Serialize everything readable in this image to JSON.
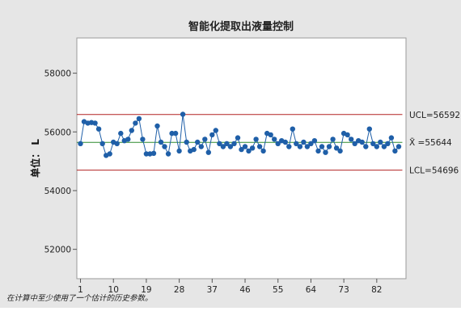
{
  "chart_data": {
    "type": "line",
    "title": "智能化提取出液量控制",
    "ylabel": "单位： L",
    "xlabel": "",
    "ylim": [
      51000,
      59200
    ],
    "xlim": [
      0,
      90
    ],
    "y_ticks": [
      52000,
      54000,
      56000,
      58000
    ],
    "x_ticks": [
      1,
      10,
      19,
      28,
      37,
      46,
      55,
      64,
      73,
      82
    ],
    "grid": false,
    "colors": {
      "outer_background": "#e6e6e6",
      "plot_background": "#ffffff",
      "series": "#1f5fa8",
      "control_limits": "#b22222",
      "center_line": "#2e8b2e"
    },
    "limits": {
      "ucl": {
        "label": "UCL=56592",
        "value": 56592
      },
      "center": {
        "label": "X̄ =55644",
        "value": 55644
      },
      "lcl": {
        "label": "LCL=54696",
        "value": 54696
      }
    },
    "series": [
      {
        "x": [
          1,
          2,
          3,
          4,
          5,
          6,
          7,
          8,
          9,
          10,
          11,
          12,
          13,
          14,
          15,
          16,
          17,
          18,
          19,
          20,
          21,
          22,
          23,
          24,
          25,
          26,
          27,
          28,
          29,
          30,
          31,
          32,
          33,
          34,
          35,
          36,
          37,
          38,
          39,
          40,
          41,
          42,
          43,
          44,
          45,
          46,
          47,
          48,
          49,
          50,
          51,
          52,
          53,
          54,
          55,
          56,
          57,
          58,
          59,
          60,
          61,
          62,
          63,
          64,
          65,
          66,
          67,
          68,
          69,
          70,
          71,
          72,
          73,
          74,
          75,
          76,
          77,
          78,
          79,
          80,
          81,
          82,
          83,
          84,
          85,
          86,
          87,
          88
        ],
        "values": [
          55600,
          56350,
          56300,
          56320,
          56300,
          56100,
          55600,
          55200,
          55250,
          55650,
          55600,
          55950,
          55700,
          55750,
          56050,
          56300,
          56450,
          55750,
          55250,
          55250,
          55270,
          56200,
          55650,
          55500,
          55250,
          55950,
          55950,
          55350,
          56600,
          55650,
          55350,
          55400,
          55650,
          55500,
          55750,
          55300,
          55900,
          56050,
          55600,
          55500,
          55600,
          55500,
          55600,
          55800,
          55400,
          55500,
          55350,
          55450,
          55750,
          55500,
          55350,
          55950,
          55900,
          55750,
          55600,
          55700,
          55650,
          55500,
          56100,
          55600,
          55500,
          55650,
          55500,
          55600,
          55700,
          55350,
          55500,
          55300,
          55500,
          55750,
          55450,
          55350,
          55950,
          55900,
          55750,
          55600,
          55700,
          55650,
          55500,
          56100,
          55600,
          55500,
          55650,
          55500,
          55600,
          55800,
          55350,
          55500
        ]
      }
    ]
  },
  "footnote": "在计算中至少使用了一个估计的历史参数。"
}
